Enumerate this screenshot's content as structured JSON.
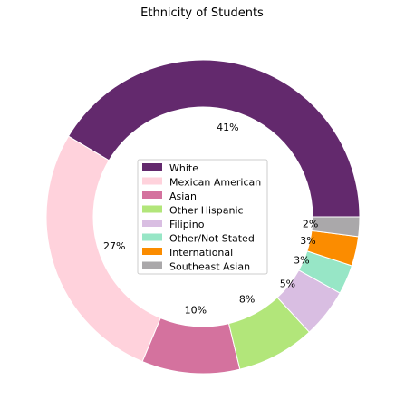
{
  "chart_data": {
    "type": "pie",
    "variant": "donut",
    "title": "Ethnicity of Students",
    "legend_position": "center",
    "slices": [
      {
        "label": "White",
        "value": 41,
        "pct_label": "41%",
        "color": "#63296d"
      },
      {
        "label": "Mexican American",
        "value": 27,
        "pct_label": "27%",
        "color": "#ffd2dc"
      },
      {
        "label": "Asian",
        "value": 10,
        "pct_label": "10%",
        "color": "#d4729e"
      },
      {
        "label": "Other Hispanic",
        "value": 8,
        "pct_label": "8%",
        "color": "#b2e67a"
      },
      {
        "label": "Filipino",
        "value": 5,
        "pct_label": "5%",
        "color": "#d9bee2"
      },
      {
        "label": "Other/Not Stated",
        "value": 3,
        "pct_label": "3%",
        "color": "#97e6c6"
      },
      {
        "label": "International",
        "value": 3,
        "pct_label": "3%",
        "color": "#fb8c00"
      },
      {
        "label": "Southeast Asian",
        "value": 2,
        "pct_label": "2%",
        "color": "#aaa8aa"
      }
    ]
  }
}
